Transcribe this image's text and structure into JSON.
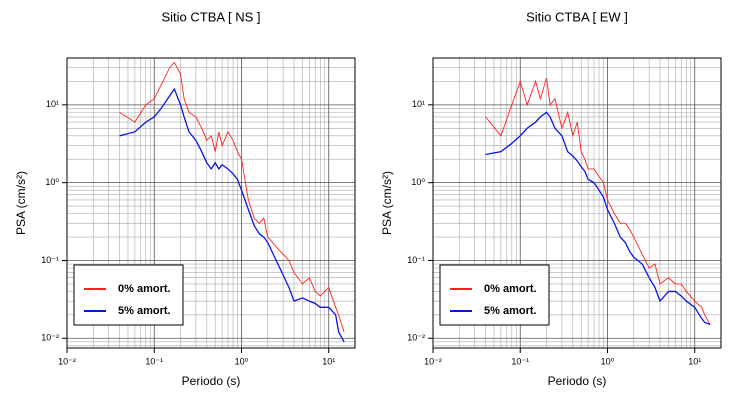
{
  "chart_data": [
    {
      "type": "line",
      "title": "Sitio CTBA [ NS ]",
      "xlabel": "Periodo (s)",
      "ylabel": "PSA (cm/s²)",
      "xscale": "log",
      "yscale": "log",
      "grid": true,
      "minor_grid": true,
      "legend": "lower left",
      "xlim": [
        0.01,
        20
      ],
      "ylim": [
        0.0075,
        40
      ],
      "xticks": [
        {
          "value": 0.01,
          "label": "10⁻²"
        },
        {
          "value": 0.1,
          "label": "10⁻¹"
        },
        {
          "value": 1,
          "label": "10⁰"
        },
        {
          "value": 10,
          "label": "10¹"
        }
      ],
      "yticks": [
        {
          "value": 0.01,
          "label": "10⁻²"
        },
        {
          "value": 0.1,
          "label": "10⁻¹"
        },
        {
          "value": 1,
          "label": "10⁰"
        },
        {
          "value": 10,
          "label": "10¹"
        }
      ],
      "x": [
        0.04,
        0.06,
        0.08,
        0.1,
        0.12,
        0.15,
        0.17,
        0.2,
        0.22,
        0.25,
        0.3,
        0.35,
        0.4,
        0.45,
        0.5,
        0.55,
        0.6,
        0.7,
        0.8,
        0.9,
        1.0,
        1.2,
        1.4,
        1.6,
        1.8,
        2,
        2.5,
        3,
        3.5,
        4,
        5,
        6,
        7,
        8,
        10,
        12,
        13,
        15
      ],
      "series": [
        {
          "name": "0% amort.",
          "color": "#ff2020",
          "values": [
            8,
            6,
            10,
            12,
            18,
            30,
            35,
            25,
            12,
            8,
            7,
            5,
            3.5,
            4,
            2.5,
            4.5,
            3,
            4.5,
            3.5,
            2.5,
            2,
            0.6,
            0.35,
            0.3,
            0.35,
            0.2,
            0.15,
            0.12,
            0.1,
            0.07,
            0.05,
            0.06,
            0.04,
            0.035,
            0.045,
            0.025,
            0.02,
            0.012
          ]
        },
        {
          "name": "5% amort.",
          "color": "#0a14e6",
          "values": [
            4,
            4.5,
            6,
            7,
            9,
            13,
            16,
            10,
            7,
            4.5,
            3.5,
            2.5,
            1.8,
            1.5,
            1.8,
            1.5,
            1.7,
            1.5,
            1.3,
            1.1,
            0.8,
            0.45,
            0.28,
            0.22,
            0.2,
            0.17,
            0.1,
            0.065,
            0.045,
            0.03,
            0.033,
            0.03,
            0.028,
            0.025,
            0.025,
            0.02,
            0.012,
            0.009
          ]
        }
      ]
    },
    {
      "type": "line",
      "title": "Sitio CTBA [ EW ]",
      "xlabel": "Periodo (s)",
      "ylabel": "PSA (cm/s²)",
      "xscale": "log",
      "yscale": "log",
      "grid": true,
      "minor_grid": true,
      "legend": "lower left",
      "xlim": [
        0.01,
        20
      ],
      "ylim": [
        0.0075,
        40
      ],
      "xticks": [
        {
          "value": 0.01,
          "label": "10⁻²"
        },
        {
          "value": 0.1,
          "label": "10⁻¹"
        },
        {
          "value": 1,
          "label": "10⁰"
        },
        {
          "value": 10,
          "label": "10¹"
        }
      ],
      "yticks": [
        {
          "value": 0.01,
          "label": "10⁻²"
        },
        {
          "value": 0.1,
          "label": "10⁻¹"
        },
        {
          "value": 1,
          "label": "10⁰"
        },
        {
          "value": 10,
          "label": "10¹"
        }
      ],
      "x": [
        0.04,
        0.06,
        0.08,
        0.1,
        0.12,
        0.15,
        0.17,
        0.2,
        0.22,
        0.25,
        0.3,
        0.35,
        0.4,
        0.45,
        0.5,
        0.55,
        0.6,
        0.7,
        0.8,
        0.9,
        1.0,
        1.2,
        1.4,
        1.6,
        1.8,
        2,
        2.5,
        3,
        3.5,
        4,
        5,
        6,
        7,
        8,
        10,
        12,
        13,
        15
      ],
      "series": [
        {
          "name": "0% amort.",
          "color": "#ff2020",
          "values": [
            7,
            4,
            10,
            20,
            10,
            20,
            12,
            22,
            10,
            12,
            5,
            8,
            4,
            6,
            2.5,
            2,
            1.5,
            1.5,
            1.2,
            1,
            0.6,
            0.4,
            0.3,
            0.3,
            0.25,
            0.2,
            0.12,
            0.08,
            0.09,
            0.05,
            0.06,
            0.05,
            0.05,
            0.04,
            0.03,
            0.025,
            0.02,
            0.015
          ]
        },
        {
          "name": "5% amort.",
          "color": "#0a14e6",
          "values": [
            2.3,
            2.5,
            3.2,
            4,
            5,
            6,
            7,
            8,
            7,
            5,
            4,
            2.5,
            2.2,
            1.9,
            1.6,
            1.4,
            1.1,
            1.0,
            0.8,
            0.65,
            0.45,
            0.3,
            0.2,
            0.17,
            0.13,
            0.11,
            0.09,
            0.06,
            0.045,
            0.03,
            0.04,
            0.04,
            0.035,
            0.03,
            0.025,
            0.018,
            0.016,
            0.015
          ]
        }
      ]
    }
  ]
}
